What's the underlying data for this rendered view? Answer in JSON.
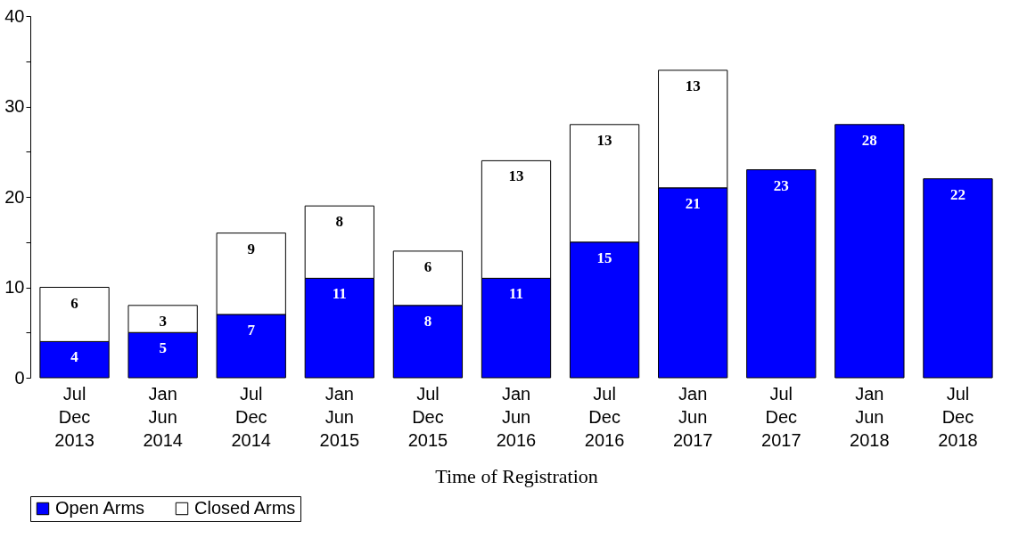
{
  "chart_data": {
    "type": "bar",
    "xlabel": "Time of Registration",
    "categories": [
      "Jul\nDec\n2013",
      "Jan\nJun\n2014",
      "Jul\nDec\n2014",
      "Jan\nJun\n2015",
      "Jul\nDec\n2015",
      "Jan\nJun\n2016",
      "Jul\nDec\n2016",
      "Jan\nJun\n2017",
      "Jul\nDec\n2017",
      "Jan\nJun\n2018",
      "Jul\nDec\n2018"
    ],
    "series": [
      {
        "name": "Open Arms",
        "color": "#0000ff",
        "values": [
          4,
          5,
          7,
          11,
          8,
          11,
          15,
          21,
          23,
          28,
          22
        ]
      },
      {
        "name": "Closed Arms",
        "color": "#ffffff",
        "values": [
          6,
          3,
          9,
          8,
          6,
          13,
          13,
          13,
          null,
          null,
          null
        ]
      }
    ],
    "stacked": true,
    "data_labels": true,
    "legend": "bottom",
    "grid": false,
    "ylim": [
      0,
      40
    ],
    "yticks": [
      0,
      {
        "value": 5,
        "label": null
      },
      10,
      {
        "value": 15,
        "label": null
      },
      20,
      {
        "value": 25,
        "label": null
      },
      30,
      {
        "value": 35,
        "label": null
      },
      40
    ]
  }
}
